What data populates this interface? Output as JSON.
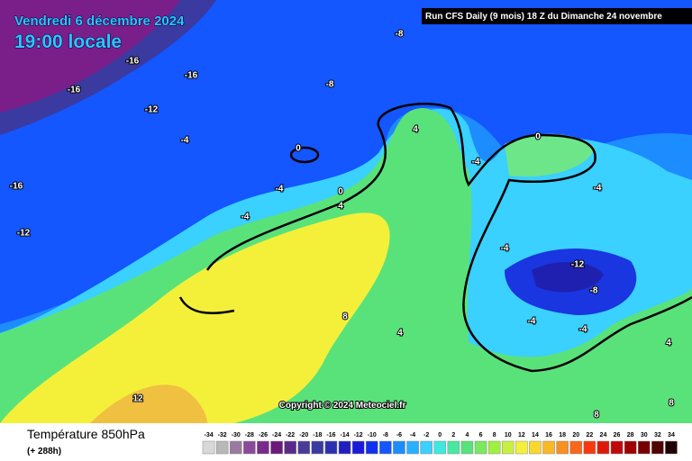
{
  "header": {
    "date": "Vendredi 6 décembre 2024",
    "time": "19:00 locale",
    "run_info": "Run CFS Daily (9 mois) 18 Z du Dimanche 24 novembre"
  },
  "contour_labels": [
    -8,
    -16,
    -16,
    -16,
    -8,
    -12,
    -4,
    0,
    4,
    -16,
    -4,
    0,
    4,
    -4,
    -12,
    -4,
    0,
    -4,
    -4,
    -12,
    -8,
    -4,
    -4,
    4,
    8,
    4,
    12,
    8,
    8
  ],
  "copyright": "Copyright © 2024 Meteociel.fr",
  "footer": {
    "variable": "Température 850hPa",
    "forecast_hour": "(+ 288h)"
  },
  "scale": {
    "values": [
      -34,
      -32,
      -30,
      -28,
      -26,
      -24,
      -22,
      -20,
      -18,
      -16,
      -14,
      -12,
      -10,
      -8,
      -6,
      -4,
      -2,
      0,
      2,
      4,
      6,
      8,
      10,
      12,
      14,
      16,
      18,
      20,
      22,
      24,
      26,
      28,
      30,
      32,
      34
    ],
    "colors": [
      "#d8d8d8",
      "#b8b8b8",
      "#9a7aa0",
      "#8a4a9a",
      "#7a2a8a",
      "#6a1a7a",
      "#5a2a8a",
      "#4a3a9a",
      "#3a3aa0",
      "#2a30b0",
      "#2020c0",
      "#1a1ad8",
      "#1030f0",
      "#1456ff",
      "#1c8cff",
      "#28b0ff",
      "#3ad0ff",
      "#40e8e0",
      "#48e8a0",
      "#5ae27a",
      "#7ae860",
      "#a0f040",
      "#c8f040",
      "#f4f03a",
      "#f8d830",
      "#f8b828",
      "#f89020",
      "#f86818",
      "#f83810",
      "#e01808",
      "#c00808",
      "#a00000",
      "#780000",
      "#500000",
      "#200000"
    ]
  }
}
